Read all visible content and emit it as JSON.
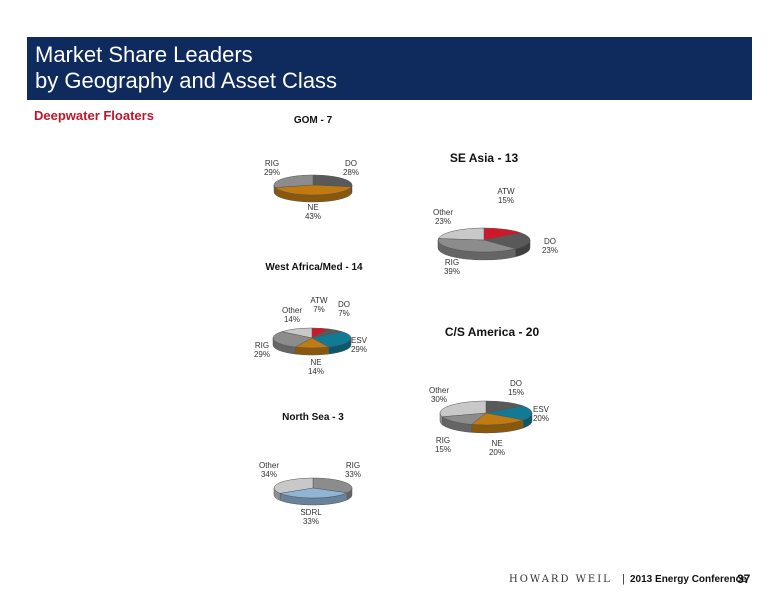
{
  "header": {
    "title_line1": "Market Share Leaders",
    "title_line2": "by Geography and Asset Class"
  },
  "subtitle": "Deepwater Floaters",
  "footer": {
    "brand": "HOWARD WEIL",
    "separator": "|",
    "conference": "2013 Energy Conference",
    "page_number": "37"
  },
  "colors": {
    "header_bg": "#0f2a5c",
    "subtitle": "#c0162c",
    "RIG": "#8c8c8c",
    "DO": "#595959",
    "NE": "#c07a10",
    "ATW": "#d0182b",
    "ESV": "#117a95",
    "Other": "#c8c8c8",
    "SDRL": "#8fb4d6"
  },
  "chart_data": [
    {
      "type": "pie",
      "title": "GOM - 7",
      "slices": [
        {
          "label": "DO",
          "value": 28
        },
        {
          "label": "NE",
          "value": 43
        },
        {
          "label": "RIG",
          "value": 29
        }
      ]
    },
    {
      "type": "pie",
      "title": "SE Asia  - 13",
      "slices": [
        {
          "label": "ATW",
          "value": 15
        },
        {
          "label": "DO",
          "value": 23
        },
        {
          "label": "RIG",
          "value": 39
        },
        {
          "label": "Other",
          "value": 23
        }
      ]
    },
    {
      "type": "pie",
      "title": "West Africa/Med - 14",
      "slices": [
        {
          "label": "ATW",
          "value": 7
        },
        {
          "label": "DO",
          "value": 7
        },
        {
          "label": "ESV",
          "value": 29
        },
        {
          "label": "NE",
          "value": 14
        },
        {
          "label": "RIG",
          "value": 29
        },
        {
          "label": "Other",
          "value": 14
        }
      ]
    },
    {
      "type": "pie",
      "title": "C/S America  - 20",
      "slices": [
        {
          "label": "DO",
          "value": 15
        },
        {
          "label": "ESV",
          "value": 20
        },
        {
          "label": "NE",
          "value": 20
        },
        {
          "label": "RIG",
          "value": 15
        },
        {
          "label": "Other",
          "value": 30
        }
      ]
    },
    {
      "type": "pie",
      "title": "North Sea - 3",
      "slices": [
        {
          "label": "RIG",
          "value": 33
        },
        {
          "label": "SDRL",
          "value": 33
        },
        {
          "label": "Other",
          "value": 34
        }
      ]
    }
  ]
}
